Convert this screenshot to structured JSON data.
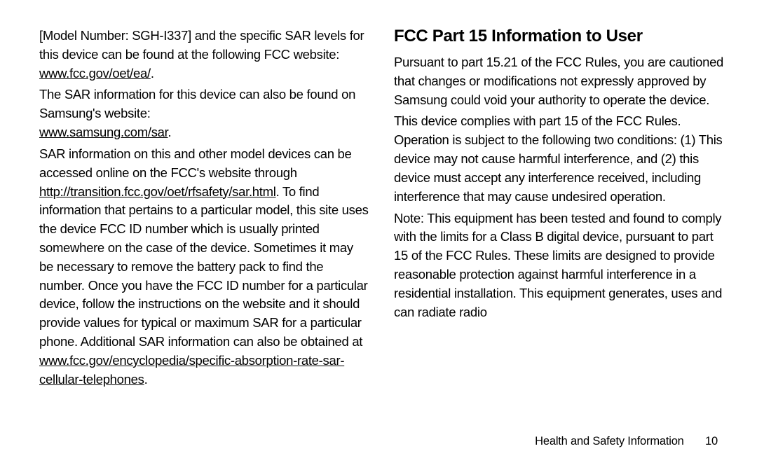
{
  "left": {
    "p1_a": "[Model Number: SGH-I337] and the specific SAR levels for this device can be found at the following FCC website: ",
    "p1_link": "www.fcc.gov/oet/ea/",
    "p1_b": ".",
    "p2_a": "The SAR information for this device can also be found on Samsung's website:",
    "p2_link": "www.samsung.com/sar",
    "p2_b": ".",
    "p3_a": "SAR information on this and other model devices can be accessed online on the FCC's website through ",
    "p3_link1": "http://transition.fcc.gov/oet/rfsafety/sar.html",
    "p3_b": ". To find information that pertains to a particular model, this site uses the device FCC ID number which is usually printed somewhere on the case of the device. Sometimes it may be necessary to remove the battery pack to find the number. Once you have the FCC ID number for a particular device, follow the instructions on the website and it should provide values for typical or maximum SAR for a particular phone. Additional SAR information can also be obtained at ",
    "p3_link2": "www.fcc.gov/encyclopedia/specific-absorption-rate-sar-cellular-telephones",
    "p3_c": "."
  },
  "right": {
    "heading": "FCC Part 15 Information to User",
    "p1": "Pursuant to part 15.21 of the FCC Rules, you are cautioned that changes or modifications not expressly approved by Samsung could void your authority to operate the device.",
    "p2": "This device complies with part 15 of the FCC Rules. Operation is subject to the following two conditions: (1) This device may not cause harmful interference, and (2) this device must accept any interference received, including interference that may cause undesired operation.",
    "p3": "Note: This equipment has been tested and found to comply with the limits for a Class B digital device, pursuant to part 15 of the FCC Rules. These limits are designed to provide reasonable protection against harmful interference in a residential installation. This equipment generates, uses and can radiate radio"
  },
  "footer": {
    "label": "Health and Safety Information",
    "page": "10"
  }
}
